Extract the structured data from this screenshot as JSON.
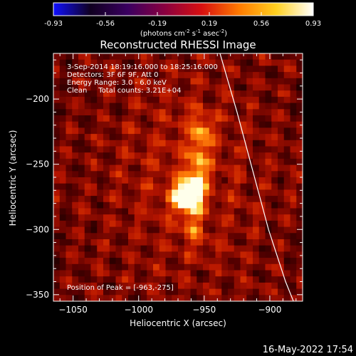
{
  "colorbar": {
    "ticks": [
      "-0.93",
      "-0.56",
      "-0.19",
      "0.19",
      "0.56",
      "0.93"
    ],
    "label_pre": "(photons cm",
    "label_sup1": "-2",
    "label_mid1": " s",
    "label_sup2": "-1",
    "label_mid2": " asec",
    "label_sup3": "-2",
    "label_post": ")",
    "colors": [
      "#1010ff",
      "#100020",
      "#3a0060",
      "#8a0040",
      "#d81010",
      "#ff7a00",
      "#ffd020",
      "#ffffff"
    ]
  },
  "footer": {
    "timestamp": "16-May-2022 17:54"
  },
  "chart_data": {
    "type": "heatmap",
    "title": "Reconstructed RHESSI Image",
    "xlabel": "Heliocentric X (arcsec)",
    "ylabel": "Heliocentric Y (arcsec)",
    "xlim": [
      -1065,
      -875
    ],
    "ylim": [
      -355,
      -165
    ],
    "xticks": [
      -1050,
      -1000,
      -950,
      -900
    ],
    "yticks": [
      -200,
      -250,
      -300,
      -350
    ],
    "info_lines": [
      "3-Sep-2014 18:19:16.000 to 18:25:16.000",
      "Detectors: 3F 6F 9F, Att 0",
      "Energy Range: 3.0 - 6.0 keV",
      "Clean     Total counts: 3.21E+04"
    ],
    "peak_text": "Position of Peak = [-963,-275]",
    "peak": {
      "x": -963,
      "y": -275,
      "value": 0.93
    },
    "limb_curve": [
      [
        -938,
        -165
      ],
      [
        -925,
        -210
      ],
      [
        -913,
        -255
      ],
      [
        -901,
        -300
      ],
      [
        -888,
        -340
      ],
      [
        -882,
        -355
      ]
    ],
    "sources": [
      {
        "x": -963,
        "y": -275,
        "sx": 7,
        "sy": 8,
        "amp": 1.0
      },
      {
        "x": -955,
        "y": -255,
        "sx": 5,
        "sy": 14,
        "amp": 0.45
      },
      {
        "x": -952,
        "y": -225,
        "sx": 6,
        "sy": 10,
        "amp": 0.38
      },
      {
        "x": -958,
        "y": -300,
        "sx": 5,
        "sy": 10,
        "amp": 0.25
      }
    ],
    "background_level": 0.3,
    "color_range": [
      -0.93,
      0.93
    ]
  }
}
